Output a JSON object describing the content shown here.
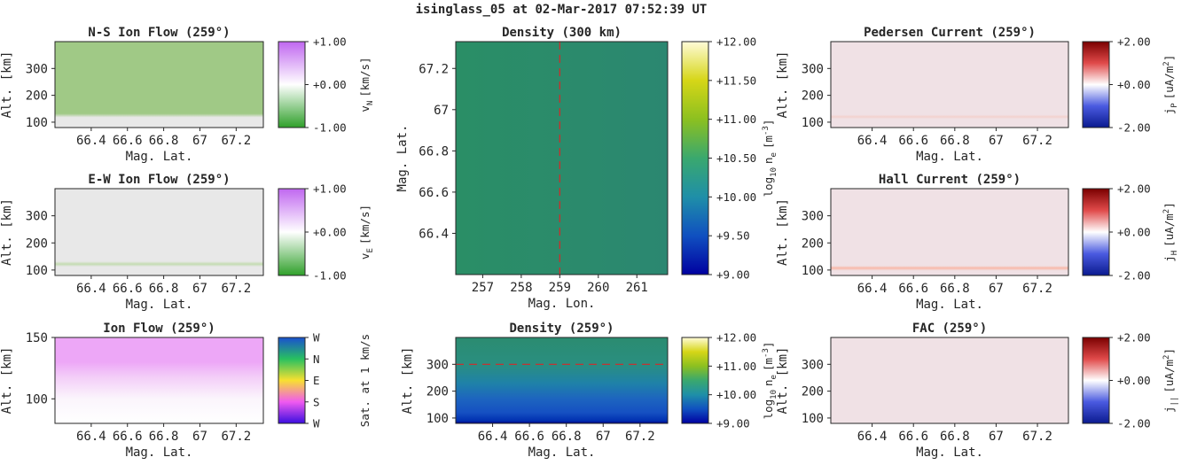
{
  "figure_title": "isinglass_05 at 02-Mar-2017 07:52:39 UT",
  "chart_data": [
    {
      "id": "ns",
      "type": "heatmap",
      "title": "N-S Ion Flow (259°)",
      "xlabel": "Mag. Lat.",
      "ylabel": "Alt. [km]",
      "xlim": [
        66.2,
        67.35
      ],
      "ylim": [
        80,
        400
      ],
      "xticks": [
        66.4,
        66.6,
        66.8,
        67,
        67.2
      ],
      "xtick_labels": [
        "66.4",
        "66.6",
        "66.8",
        "67",
        "67.2"
      ],
      "yticks": [
        100,
        200,
        300
      ],
      "ytick_labels": [
        "100",
        "200",
        "300"
      ],
      "gradient": [
        {
          "y": 80,
          "color": "#e8e8e8"
        },
        {
          "y": 118,
          "color": "#e8e8e8"
        },
        {
          "y": 132,
          "color": "#a0c986"
        },
        {
          "y": 400,
          "color": "#a0c986"
        }
      ],
      "colorbar": {
        "label_main": "v",
        "label_sub": "N",
        "label_unit": "[km/s]",
        "colors": [
          "#2fa02a",
          "#ffffff",
          "#c067f0"
        ],
        "ticks": [
          "-1.00",
          "+0.00",
          "+1.00"
        ]
      }
    },
    {
      "id": "ew",
      "type": "heatmap",
      "title": "E-W Ion Flow (259°)",
      "xlabel": "Mag. Lat.",
      "ylabel": "Alt. [km]",
      "xlim": [
        66.2,
        67.35
      ],
      "ylim": [
        80,
        400
      ],
      "xticks": [
        66.4,
        66.6,
        66.8,
        67,
        67.2
      ],
      "xtick_labels": [
        "66.4",
        "66.6",
        "66.8",
        "67",
        "67.2"
      ],
      "yticks": [
        100,
        200,
        300
      ],
      "ytick_labels": [
        "100",
        "200",
        "300"
      ],
      "gradient": [
        {
          "y": 80,
          "color": "#e8e8e8"
        },
        {
          "y": 112,
          "color": "#e8e8e8"
        },
        {
          "y": 122,
          "color": "#c4dcb2"
        },
        {
          "y": 132,
          "color": "#e8e8e8"
        },
        {
          "y": 400,
          "color": "#e8e8e8"
        }
      ],
      "colorbar": {
        "label_main": "v",
        "label_sub": "E",
        "label_unit": "[km/s]",
        "colors": [
          "#2fa02a",
          "#ffffff",
          "#c067f0"
        ],
        "ticks": [
          "-1.00",
          "+0.00",
          "+1.00"
        ]
      }
    },
    {
      "id": "flow",
      "type": "heatmap",
      "title": "Ion Flow (259°)",
      "xlabel": "Mag. Lat.",
      "ylabel": "Alt. [km]",
      "xlim": [
        66.2,
        67.35
      ],
      "ylim": [
        80,
        150
      ],
      "xticks": [
        66.4,
        66.6,
        66.8,
        67,
        67.2
      ],
      "xtick_labels": [
        "66.4",
        "66.6",
        "66.8",
        "67",
        "67.2"
      ],
      "yticks": [
        100,
        150
      ],
      "ytick_labels": [
        "100",
        "150"
      ],
      "gradient": [
        {
          "y": 80,
          "color": "#ffffff"
        },
        {
          "y": 100,
          "color": "#fbf5fc"
        },
        {
          "y": 118,
          "color": "#f3cdf8"
        },
        {
          "y": 130,
          "color": "#eda7f7"
        },
        {
          "y": 150,
          "color": "#eda7f7"
        }
      ],
      "colorbar": {
        "label_main": "Sat. at 1 km/s",
        "label_sub": "",
        "label_unit": "",
        "colors": [
          "#3a0ee0",
          "#f05af0",
          "#f8e030",
          "#28c060",
          "#1a50d0"
        ],
        "ticks": [
          "W",
          "S",
          "E",
          "N",
          "W"
        ]
      }
    },
    {
      "id": "dens_top",
      "type": "heatmap",
      "title": "Density (300 km)",
      "xlabel": "Mag. Lon.",
      "ylabel": "Mag. Lat.",
      "xlim": [
        256.3,
        261.8
      ],
      "ylim": [
        66.2,
        67.33
      ],
      "xticks": [
        257,
        258,
        259,
        260,
        261
      ],
      "xtick_labels": [
        "257",
        "258",
        "259",
        "260",
        "261"
      ],
      "yticks": [
        66.4,
        66.6,
        66.8,
        67,
        67.2
      ],
      "ytick_labels": [
        "66.4",
        "66.6",
        "66.8",
        "67",
        "67.2"
      ],
      "hgradient": [
        {
          "x": 256.3,
          "color": "#2a8e66"
        },
        {
          "x": 259,
          "color": "#2b8b6b"
        },
        {
          "x": 261.8,
          "color": "#2b8771"
        }
      ],
      "vline": {
        "x": 259,
        "color": "#d62728"
      },
      "colorbar": {
        "label_main": "log",
        "label_sub": "10",
        "label_unit": "n",
        "label_sub2": "e",
        "label_tail": "[m",
        "label_sup": "-3",
        "label_end": "]",
        "colors": [
          "#0000a0",
          "#1050c0",
          "#1f8fa8",
          "#3aa86e",
          "#8cc020",
          "#d6d617",
          "#fffbd8"
        ],
        "ticks": [
          "+9.00",
          "+9.50",
          "+10.00",
          "+10.50",
          "+11.00",
          "+11.50",
          "+12.00"
        ]
      }
    },
    {
      "id": "dens_bot",
      "type": "heatmap",
      "title": "Density (259°)",
      "xlabel": "Mag. Lat.",
      "ylabel": "Alt. [km]",
      "xlim": [
        66.2,
        67.35
      ],
      "ylim": [
        80,
        400
      ],
      "xticks": [
        66.4,
        66.6,
        66.8,
        67,
        67.2
      ],
      "xtick_labels": [
        "66.4",
        "66.6",
        "66.8",
        "67",
        "67.2"
      ],
      "yticks": [
        100,
        200,
        300
      ],
      "ytick_labels": [
        "100",
        "200",
        "300"
      ],
      "gradient": [
        {
          "y": 80,
          "color": "#000088"
        },
        {
          "y": 90,
          "color": "#0030b0"
        },
        {
          "y": 120,
          "color": "#1550c2"
        },
        {
          "y": 170,
          "color": "#1d64bf"
        },
        {
          "y": 230,
          "color": "#1f82a8"
        },
        {
          "y": 300,
          "color": "#2a8e80"
        },
        {
          "y": 400,
          "color": "#2b8c70"
        }
      ],
      "hline": {
        "y": 300,
        "color": "#d62728"
      },
      "colorbar": {
        "label_main": "log",
        "label_sub": "10",
        "label_unit": "n",
        "label_sub2": "e",
        "label_tail": "[m",
        "label_sup": "-3",
        "label_end": "]",
        "colors": [
          "#0000a0",
          "#1050c0",
          "#1f8fa8",
          "#3aa86e",
          "#8cc020",
          "#d6d617",
          "#fffbd8"
        ],
        "ticks": [
          "+9.00",
          "+10.00",
          "+11.00",
          "+12.00"
        ]
      }
    },
    {
      "id": "ped",
      "type": "heatmap",
      "title": "Pedersen Current (259°)",
      "xlabel": "Mag. Lat.",
      "ylabel": "Alt. [km]",
      "xlim": [
        66.2,
        67.35
      ],
      "ylim": [
        80,
        400
      ],
      "xticks": [
        66.4,
        66.6,
        66.8,
        67,
        67.2
      ],
      "xtick_labels": [
        "66.4",
        "66.6",
        "66.8",
        "67",
        "67.2"
      ],
      "yticks": [
        100,
        200,
        300
      ],
      "ytick_labels": [
        "100",
        "200",
        "300"
      ],
      "gradient": [
        {
          "y": 80,
          "color": "#f0e1e5"
        },
        {
          "y": 112,
          "color": "#f0e1e5"
        },
        {
          "y": 120,
          "color": "#f3d1ce"
        },
        {
          "y": 128,
          "color": "#f0e1e5"
        },
        {
          "y": 400,
          "color": "#f0e1e5"
        }
      ],
      "colorbar": {
        "label_main": "j",
        "label_sub": "P",
        "label_unit": "[uA/m",
        "label_sup": "2",
        "label_end": "]",
        "colors": [
          "#0a1a8f",
          "#4a5ae0",
          "#ffffff",
          "#e04a4a",
          "#7a0000"
        ],
        "ticks": [
          "-2.00",
          "+0.00",
          "+2.00"
        ]
      }
    },
    {
      "id": "hall",
      "type": "heatmap",
      "title": "Hall Current (259°)",
      "xlabel": "Mag. Lat.",
      "ylabel": "Alt. [km]",
      "xlim": [
        66.2,
        67.35
      ],
      "ylim": [
        80,
        400
      ],
      "xticks": [
        66.4,
        66.6,
        66.8,
        67,
        67.2
      ],
      "xtick_labels": [
        "66.4",
        "66.6",
        "66.8",
        "67",
        "67.2"
      ],
      "yticks": [
        100,
        200,
        300
      ],
      "ytick_labels": [
        "100",
        "200",
        "300"
      ],
      "gradient": [
        {
          "y": 80,
          "color": "#f0e1e5"
        },
        {
          "y": 98,
          "color": "#f0e1e5"
        },
        {
          "y": 107,
          "color": "#f8b8a8"
        },
        {
          "y": 116,
          "color": "#f0e1e5"
        },
        {
          "y": 400,
          "color": "#f0e1e5"
        }
      ],
      "colorbar": {
        "label_main": "j",
        "label_sub": "H",
        "label_unit": "[uA/m",
        "label_sup": "2",
        "label_end": "]",
        "colors": [
          "#0a1a8f",
          "#4a5ae0",
          "#ffffff",
          "#e04a4a",
          "#7a0000"
        ],
        "ticks": [
          "-2.00",
          "+0.00",
          "+2.00"
        ]
      }
    },
    {
      "id": "fac",
      "type": "heatmap",
      "title": "FAC (259°)",
      "xlabel": "Mag. Lat.",
      "ylabel": "Alt. [km]",
      "xlim": [
        66.2,
        67.35
      ],
      "ylim": [
        80,
        400
      ],
      "xticks": [
        66.4,
        66.6,
        66.8,
        67,
        67.2
      ],
      "xtick_labels": [
        "66.4",
        "66.6",
        "66.8",
        "67",
        "67.2"
      ],
      "yticks": [
        100,
        200,
        300
      ],
      "ytick_labels": [
        "100",
        "200",
        "300"
      ],
      "gradient": [
        {
          "y": 80,
          "color": "#f0e1e5"
        },
        {
          "y": 400,
          "color": "#f0e1e5"
        }
      ],
      "colorbar": {
        "label_main": "j",
        "label_sub": "||",
        "label_unit": "[uA/m",
        "label_sup": "2",
        "label_end": "]",
        "colors": [
          "#0a1a8f",
          "#4a5ae0",
          "#ffffff",
          "#e04a4a",
          "#7a0000"
        ],
        "ticks": [
          "-2.00",
          "+0.00",
          "+2.00"
        ]
      }
    }
  ]
}
